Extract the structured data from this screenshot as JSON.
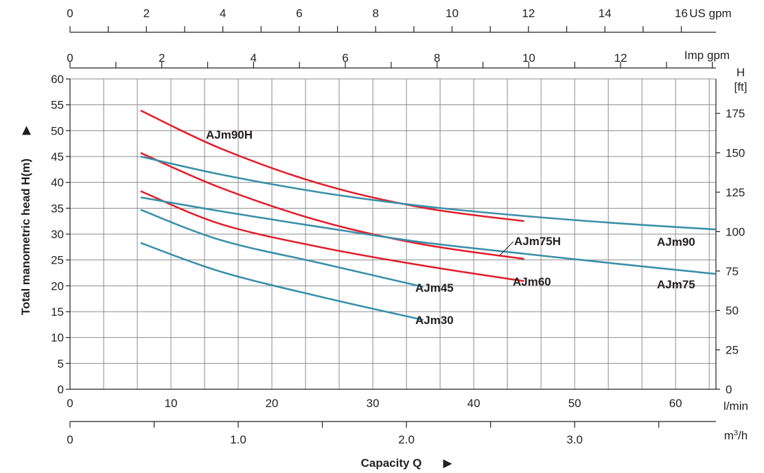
{
  "chart_data": {
    "type": "line",
    "xlabel": "Capacity Q",
    "ylabel": "Total manometric head H(m)",
    "xlim": [
      0,
      64
    ],
    "ylim": [
      0,
      60
    ],
    "grid": true,
    "x_ticks": [
      0,
      10,
      20,
      30,
      40,
      50,
      60
    ],
    "y_ticks": [
      0,
      5,
      10,
      15,
      20,
      25,
      30,
      35,
      40,
      45,
      50,
      55,
      60
    ],
    "x_unit": "l/min",
    "y_right_label": "H [ft]",
    "y_right_ticks": [
      0,
      25,
      50,
      75,
      100,
      125,
      150,
      175
    ],
    "secondary_x_axes": [
      {
        "name": "US gpm",
        "unit": "US gpm",
        "ticks": [
          0,
          2,
          4,
          6,
          8,
          10,
          12,
          14,
          16
        ]
      },
      {
        "name": "Imp gpm",
        "unit": "Imp gpm",
        "ticks": [
          0,
          2,
          4,
          6,
          8,
          10,
          12
        ]
      },
      {
        "name": "m3/h",
        "unit": "m",
        "unit_sup": "3",
        "unit_tail": "/h",
        "ticks": [
          "0",
          "1.0",
          "2.0",
          "3.0"
        ]
      }
    ],
    "series": [
      {
        "name": "AJm90H",
        "color": "#e0202e",
        "x": [
          7,
          15,
          25,
          35,
          45
        ],
        "y": [
          53.9,
          46.5,
          39.6,
          35.1,
          32.5
        ]
      },
      {
        "name": "AJm75H",
        "color": "#e0202e",
        "x": [
          7,
          15,
          25,
          35,
          45
        ],
        "y": [
          45.7,
          38.9,
          32.4,
          28.0,
          25.2
        ]
      },
      {
        "name": "AJm60",
        "color": "#e0202e",
        "x": [
          7,
          15,
          25,
          35,
          45
        ],
        "y": [
          38.3,
          31.9,
          27.4,
          23.9,
          20.9
        ]
      },
      {
        "name": "AJm90",
        "color": "#3a8fa8",
        "x": [
          7,
          15,
          25,
          35,
          45,
          55,
          64
        ],
        "y": [
          45.0,
          41.5,
          38.0,
          35.4,
          33.5,
          32.0,
          30.9
        ]
      },
      {
        "name": "AJm75",
        "color": "#3a8fa8",
        "x": [
          7,
          15,
          25,
          35,
          45,
          55,
          64
        ],
        "y": [
          37.1,
          34.4,
          31.3,
          28.4,
          26.2,
          24.1,
          22.3
        ]
      },
      {
        "name": "AJm45",
        "color": "#3a8fa8",
        "x": [
          7,
          15,
          25,
          35
        ],
        "y": [
          34.7,
          28.8,
          24.3,
          19.8
        ]
      },
      {
        "name": "AJm30",
        "color": "#3a8fa8",
        "x": [
          7,
          15,
          25,
          35
        ],
        "y": [
          28.3,
          22.7,
          17.8,
          13.4
        ]
      }
    ]
  }
}
